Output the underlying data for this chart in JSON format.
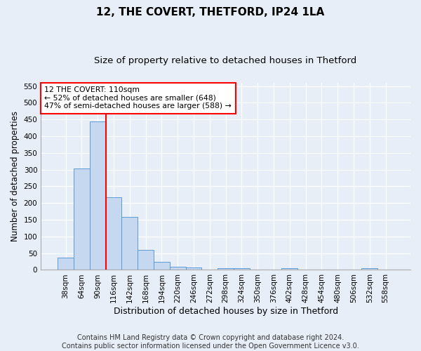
{
  "title": "12, THE COVERT, THETFORD, IP24 1LA",
  "subtitle": "Size of property relative to detached houses in Thetford",
  "xlabel": "Distribution of detached houses by size in Thetford",
  "ylabel": "Number of detached properties",
  "bin_labels": [
    "38sqm",
    "64sqm",
    "90sqm",
    "116sqm",
    "142sqm",
    "168sqm",
    "194sqm",
    "220sqm",
    "246sqm",
    "272sqm",
    "298sqm",
    "324sqm",
    "350sqm",
    "376sqm",
    "402sqm",
    "428sqm",
    "454sqm",
    "480sqm",
    "506sqm",
    "532sqm",
    "558sqm"
  ],
  "bar_values": [
    37,
    303,
    443,
    217,
    158,
    59,
    25,
    10,
    8,
    0,
    5,
    6,
    0,
    0,
    5,
    0,
    0,
    0,
    0,
    5,
    0
  ],
  "bar_color": "#c5d8f0",
  "bar_edge_color": "#5b9bd5",
  "vline_color": "red",
  "annotation_text": "12 THE COVERT: 110sqm\n← 52% of detached houses are smaller (648)\n47% of semi-detached houses are larger (588) →",
  "annotation_box_color": "white",
  "annotation_box_edge": "red",
  "ylim": [
    0,
    560
  ],
  "yticks": [
    0,
    50,
    100,
    150,
    200,
    250,
    300,
    350,
    400,
    450,
    500,
    550
  ],
  "bg_color": "#e8eef8",
  "plot_bg_color": "#e8eef8",
  "footer_text": "Contains HM Land Registry data © Crown copyright and database right 2024.\nContains public sector information licensed under the Open Government Licence v3.0.",
  "title_fontsize": 11,
  "subtitle_fontsize": 9.5,
  "xlabel_fontsize": 9,
  "ylabel_fontsize": 8.5,
  "tick_fontsize": 7.5,
  "footer_fontsize": 7
}
